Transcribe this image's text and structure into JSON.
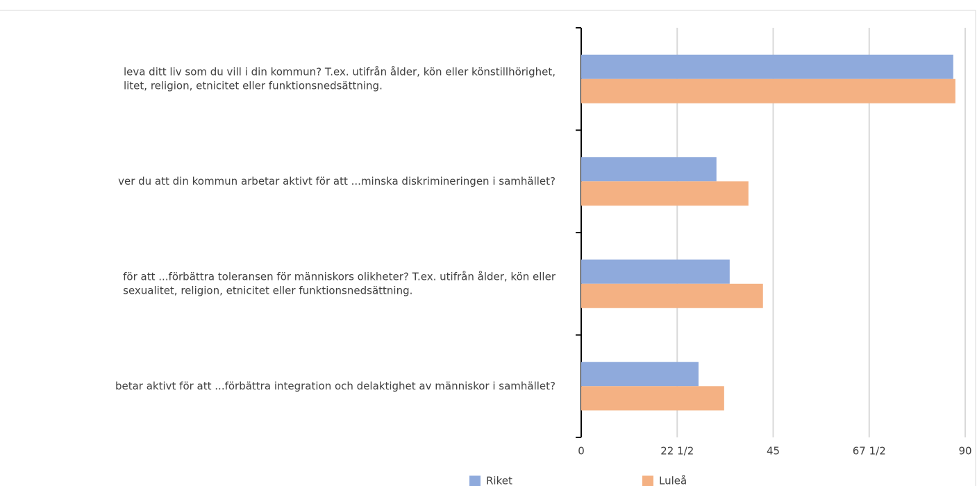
{
  "chart_data": {
    "type": "bar",
    "orientation": "horizontal",
    "categories": [
      [
        "leva ditt liv som du vill i din kommun? T.ex. utifrån ålder, kön eller könstillhörighet,",
        "litet, religion, etnicitet eller funktionsnedsättning."
      ],
      [
        "ver du att din kommun arbetar aktivt för att ...minska diskrimineringen i samhället?"
      ],
      [
        "för att ...förbättra toleransen för människors olikheter? T.ex. utifrån ålder, kön eller",
        "sexualitet, religion, etnicitet eller funktionsnedsättning."
      ],
      [
        "betar aktivt för att ...förbättra integration och delaktighet av människor i samhället?"
      ]
    ],
    "series": [
      {
        "name": "Riket",
        "color": "#8faadc",
        "values": [
          87.2,
          31.7,
          34.8,
          27.5
        ]
      },
      {
        "name": "Luleå",
        "color": "#f4b183",
        "values": [
          87.7,
          39.2,
          42.6,
          33.5
        ]
      }
    ],
    "xlim": [
      0,
      90
    ],
    "xticks": [
      0,
      {
        "value": 22.5,
        "label": "22 1/2"
      },
      45,
      {
        "value": 67.5,
        "label": "67 1/2"
      },
      90
    ],
    "grid": true,
    "legend": "bottom"
  }
}
